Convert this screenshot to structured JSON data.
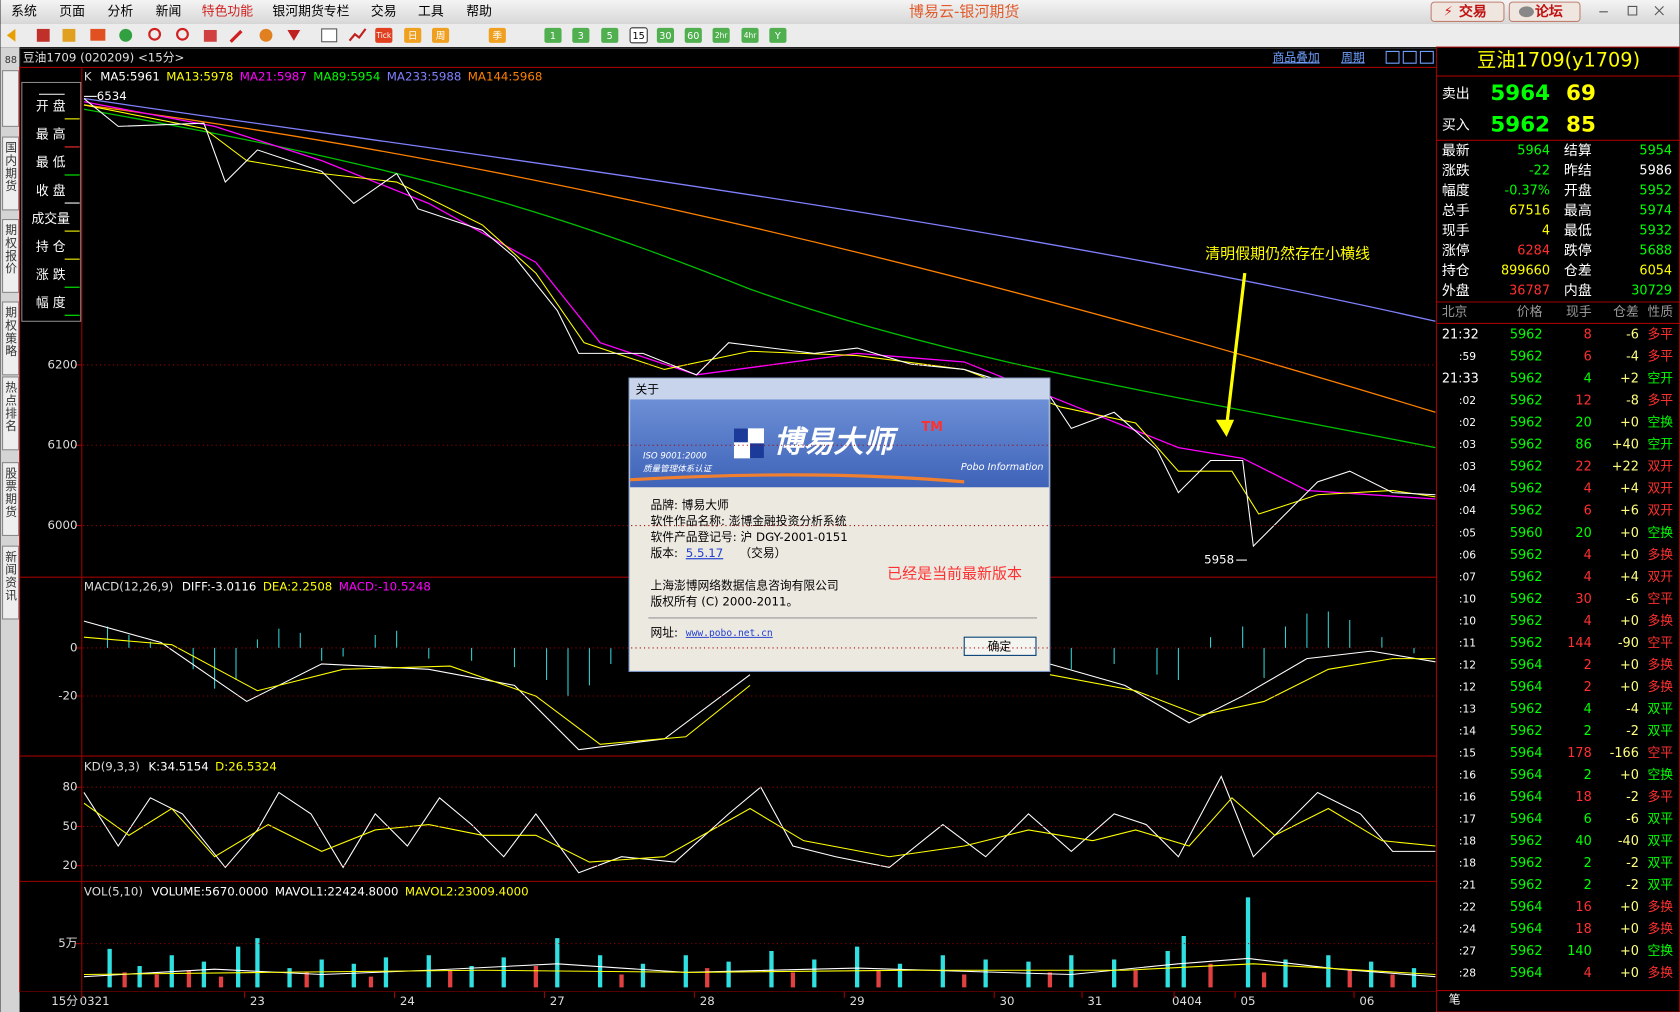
{
  "menu": [
    "系统",
    "页面",
    "分析",
    "新闻",
    "特色功能",
    "银河期货专栏",
    "交易",
    "工具",
    "帮助"
  ],
  "app_title": "博易云-银河期货",
  "top_buttons": [
    "交易",
    "论坛"
  ],
  "toolbar_periods": [
    "Tick",
    "日",
    "周",
    "季",
    "1",
    "3",
    "5",
    "15",
    "30",
    "60",
    "2hr",
    "4hr",
    "Y"
  ],
  "chart": {
    "header": "豆油1709 (020209) <15分>",
    "links": [
      "商品叠加",
      "周期"
    ],
    "side_tabs": [
      "国内期货",
      "期权报价",
      "期权策略",
      "热点排名",
      "股票期货",
      "新闻资讯"
    ],
    "info_labels": [
      "开 盘",
      "最 高",
      "最 低",
      "收 盘",
      "成交量",
      "持 仓",
      "涨 跌",
      "幅 度"
    ],
    "main": {
      "label": "K",
      "indicators": [
        {
          "text": "MA5:5961",
          "color": "#ffffff"
        },
        {
          "text": "MA13:5978",
          "color": "#ffff00"
        },
        {
          "text": "MA21:5987",
          "color": "#ff00ff"
        },
        {
          "text": "MA89:5954",
          "color": "#00ff00"
        },
        {
          "text": "MA233:5988",
          "color": "#8080ff"
        },
        {
          "text": "MA144:5968",
          "color": "#ff8000"
        }
      ],
      "high_label": "6534",
      "low_label": "5958",
      "ylim": [
        5937,
        6569
      ],
      "yticks": [
        6200,
        6100,
        6000
      ]
    },
    "macd": {
      "label": "MACD(12,26,9)",
      "indicators": [
        {
          "text": "DIFF:-3.0116",
          "color": "#ffffff"
        },
        {
          "text": "DEA:2.2508",
          "color": "#ffff00"
        },
        {
          "text": "MACD:-10.5248",
          "color": "#ff00ff"
        }
      ],
      "ylim": [
        -45,
        29
      ],
      "yticks": [
        0,
        -20
      ]
    },
    "kd": {
      "label": "KD(9,3,3)",
      "indicators": [
        {
          "text": "K:34.5154",
          "color": "#ffffff"
        },
        {
          "text": "D:26.5324",
          "color": "#ffff00"
        }
      ],
      "ylim": [
        8,
        103
      ],
      "yticks": [
        80,
        50,
        20
      ]
    },
    "vol": {
      "label": "VOL(5,10)",
      "indicators": [
        {
          "text": "VOLUME:5670.0000",
          "color": "#ffffff"
        },
        {
          "text": "MAVOL1:22424.8000",
          "color": "#ffffff"
        },
        {
          "text": "MAVOL2:23009.4000",
          "color": "#ffff00"
        }
      ],
      "ylim": [
        0,
        120000
      ],
      "yticks": [
        {
          "value": 50000,
          "label": "5万"
        }
      ]
    },
    "x_labels": [
      "15分",
      "0321",
      "23",
      "24",
      "27",
      "28",
      "29",
      "30",
      "31",
      "0404",
      "05",
      "06"
    ]
  },
  "quote": {
    "title": "豆油1709(y1709)",
    "ask": {
      "label": "卖出",
      "price": "5964",
      "volume": "69"
    },
    "bid": {
      "label": "买入",
      "price": "5962",
      "volume": "85"
    },
    "rows": [
      [
        {
          "label": "最新",
          "value": "5964",
          "color": "#00ff00"
        },
        {
          "label": "结算",
          "value": "5954",
          "color": "#00ff00"
        }
      ],
      [
        {
          "label": "涨跌",
          "value": "-22",
          "color": "#00ff00"
        },
        {
          "label": "昨结",
          "value": "5986",
          "color": "#ffffff"
        }
      ],
      [
        {
          "label": "幅度",
          "value": "-0.37%",
          "color": "#00ff00"
        },
        {
          "label": "开盘",
          "value": "5952",
          "color": "#00ff00"
        }
      ],
      [
        {
          "label": "总手",
          "value": "67516",
          "color": "#ffff00"
        },
        {
          "label": "最高",
          "value": "5974",
          "color": "#00ff00"
        }
      ],
      [
        {
          "label": "现手",
          "value": "4",
          "color": "#ffff00"
        },
        {
          "label": "最低",
          "value": "5932",
          "color": "#00ff00"
        }
      ],
      [
        {
          "label": "涨停",
          "value": "6284",
          "color": "#ff3030"
        },
        {
          "label": "跌停",
          "value": "5688",
          "color": "#00ff00"
        }
      ],
      [
        {
          "label": "持仓",
          "value": "899660",
          "color": "#ffff00"
        },
        {
          "label": "仓差",
          "value": "6054",
          "color": "#ffff00"
        }
      ],
      [
        {
          "label": "外盘",
          "value": "36787",
          "color": "#ff3030"
        },
        {
          "label": "内盘",
          "value": "30729",
          "color": "#00ff00"
        }
      ]
    ],
    "tick_headers": [
      "北京",
      "价格",
      "现手",
      "仓差",
      "性质"
    ],
    "ticks": [
      [
        "21:32",
        "5962",
        "8",
        "-6",
        "多平"
      ],
      [
        ":59",
        "5962",
        "6",
        "-4",
        "多平"
      ],
      [
        "21:33",
        "5962",
        "4",
        "+2",
        "空开"
      ],
      [
        ":02",
        "5962",
        "12",
        "-8",
        "多平"
      ],
      [
        ":02",
        "5962",
        "20",
        "+0",
        "空换"
      ],
      [
        ":03",
        "5962",
        "86",
        "+40",
        "空开"
      ],
      [
        ":03",
        "5962",
        "22",
        "+22",
        "双开"
      ],
      [
        ":04",
        "5962",
        "4",
        "+4",
        "双开"
      ],
      [
        ":04",
        "5962",
        "6",
        "+6",
        "双开"
      ],
      [
        ":05",
        "5960",
        "20",
        "+0",
        "空换"
      ],
      [
        ":06",
        "5962",
        "4",
        "+0",
        "多换"
      ],
      [
        ":07",
        "5962",
        "4",
        "+4",
        "双开"
      ],
      [
        ":10",
        "5962",
        "30",
        "-6",
        "空平"
      ],
      [
        ":10",
        "5962",
        "4",
        "+0",
        "多换"
      ],
      [
        ":11",
        "5962",
        "144",
        "-90",
        "空平"
      ],
      [
        ":12",
        "5964",
        "2",
        "+0",
        "多换"
      ],
      [
        ":12",
        "5964",
        "2",
        "+0",
        "多换"
      ],
      [
        ":13",
        "5962",
        "4",
        "-4",
        "双平"
      ],
      [
        ":14",
        "5962",
        "2",
        "-2",
        "双平"
      ],
      [
        ":15",
        "5964",
        "178",
        "-166",
        "空平"
      ],
      [
        ":16",
        "5964",
        "2",
        "+0",
        "空换"
      ],
      [
        ":16",
        "5964",
        "18",
        "-2",
        "多平"
      ],
      [
        ":17",
        "5964",
        "6",
        "-6",
        "双平"
      ],
      [
        ":18",
        "5962",
        "40",
        "-40",
        "双平"
      ],
      [
        ":18",
        "5962",
        "2",
        "-2",
        "双平"
      ],
      [
        ":21",
        "5962",
        "2",
        "-2",
        "双平"
      ],
      [
        ":22",
        "5964",
        "16",
        "+0",
        "多换"
      ],
      [
        ":24",
        "5964",
        "18",
        "+0",
        "多换"
      ],
      [
        ":27",
        "5962",
        "140",
        "+0",
        "空换"
      ],
      [
        ":28",
        "5964",
        "4",
        "+0",
        "多换"
      ]
    ],
    "footer": "笔"
  },
  "dialog": {
    "title": "关于",
    "brand": "博易大师",
    "tm": "TM",
    "iso": "ISO 9001:2000",
    "iso_cert": "质量管理体系认证",
    "company_en": "Pobo Information",
    "lines": [
      "品牌: 博易大师",
      "软件作品名称: 澎博金融投资分析系统",
      "软件产品登记号: 沪 DGY-2001-0151"
    ],
    "version_label": "版本:",
    "version": "5.5.17",
    "version_note": "（交易）",
    "company": "上海澎博网络数据信息咨询有限公司",
    "copyright": "版权所有 (C) 2000-2011。",
    "url_label": "网址:",
    "url": "www.pobo.net.cn",
    "ok": "确定"
  },
  "annotations": [
    "清明假期仍然存在小横线",
    "已经是当前最新版本"
  ]
}
